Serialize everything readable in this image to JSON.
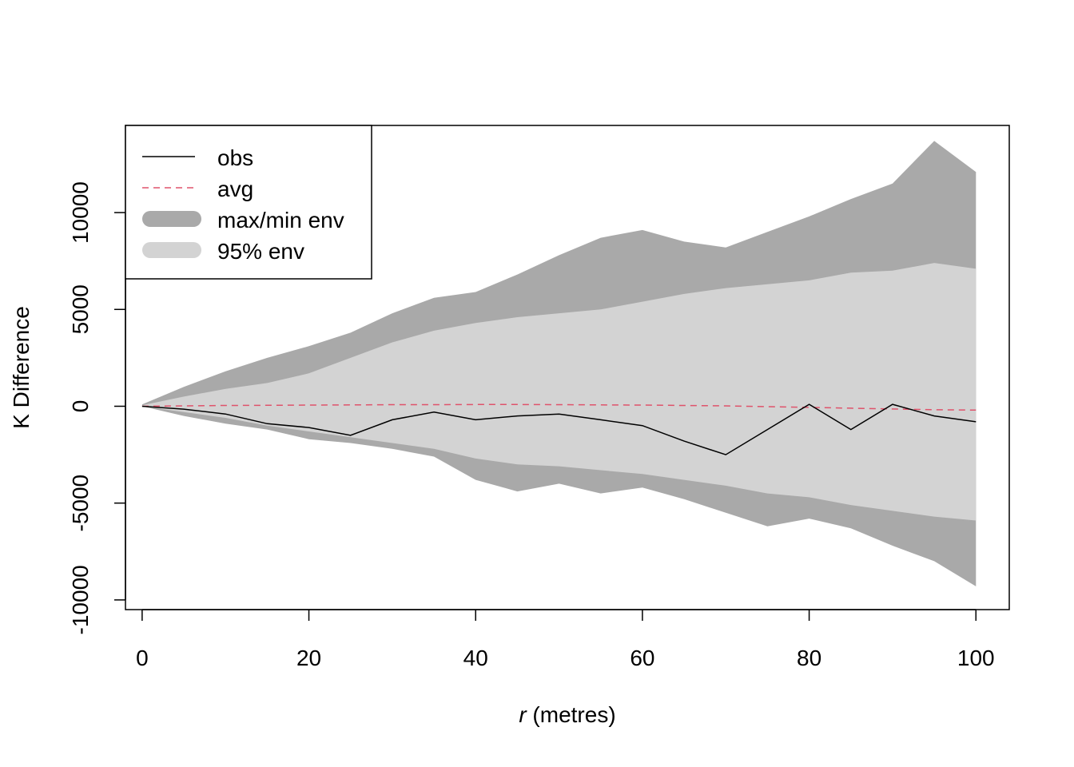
{
  "chart_data": {
    "type": "line",
    "title": "",
    "xlabel_italic": "r",
    "xlabel_rest": " (metres)",
    "ylabel": "K Difference",
    "xlim": [
      -2,
      104
    ],
    "ylim": [
      -10500,
      14500
    ],
    "x_ticks": [
      0,
      20,
      40,
      60,
      80,
      100
    ],
    "x_tick_labels": [
      "0",
      "20",
      "40",
      "60",
      "80",
      "100"
    ],
    "y_ticks": [
      -10000,
      -5000,
      0,
      5000,
      10000
    ],
    "y_tick_labels": [
      "-10000",
      "-5000",
      "0",
      "5000",
      "10000"
    ],
    "grid": false,
    "legend_position": "top-left",
    "legend": [
      {
        "label": "obs",
        "style": "solid-line",
        "color": "#000000"
      },
      {
        "label": "avg",
        "style": "dashed-line",
        "color": "#DF536B"
      },
      {
        "label": "max/min env",
        "style": "band",
        "color": "#A9A9A9"
      },
      {
        "label": "95% env",
        "style": "band",
        "color": "#D3D3D3"
      }
    ],
    "colors": {
      "obs": "#000000",
      "avg": "#DF536B",
      "maxmin": "#A9A9A9",
      "env95": "#D3D3D3"
    },
    "x": [
      0,
      5,
      10,
      15,
      20,
      25,
      30,
      35,
      40,
      45,
      50,
      55,
      60,
      65,
      70,
      75,
      80,
      85,
      90,
      95,
      100
    ],
    "series": [
      {
        "name": "obs",
        "values": [
          0,
          -150,
          -400,
          -900,
          -1100,
          -1500,
          -700,
          -300,
          -700,
          -500,
          -400,
          -700,
          -1000,
          -1800,
          -2500,
          -1200,
          100,
          -1200,
          100,
          -500,
          -800
        ]
      },
      {
        "name": "avg",
        "values": [
          0,
          20,
          40,
          50,
          60,
          70,
          80,
          80,
          90,
          90,
          80,
          70,
          60,
          40,
          20,
          -20,
          -60,
          -100,
          -140,
          -180,
          -200
        ]
      },
      {
        "name": "max env",
        "values": [
          100,
          1000,
          1800,
          2500,
          3100,
          3800,
          4800,
          5600,
          5900,
          6800,
          7800,
          8700,
          9100,
          8500,
          8200,
          9000,
          9800,
          10700,
          11500,
          13700,
          12100
        ]
      },
      {
        "name": "min env",
        "values": [
          0,
          -500,
          -900,
          -1200,
          -1700,
          -1900,
          -2200,
          -2600,
          -3800,
          -4400,
          -4000,
          -4500,
          -4200,
          -4800,
          -5500,
          -6200,
          -5800,
          -6300,
          -7200,
          -8000,
          -9300
        ]
      },
      {
        "name": "95% env upper",
        "values": [
          50,
          500,
          900,
          1200,
          1700,
          2500,
          3300,
          3900,
          4300,
          4600,
          4800,
          5000,
          5400,
          5800,
          6100,
          6300,
          6500,
          6900,
          7000,
          7400,
          7100
        ]
      },
      {
        "name": "95% env lower",
        "values": [
          0,
          -300,
          -600,
          -1000,
          -1300,
          -1600,
          -1900,
          -2200,
          -2700,
          -3000,
          -3100,
          -3300,
          -3500,
          -3800,
          -4100,
          -4500,
          -4700,
          -5100,
          -5400,
          -5700,
          -5900
        ]
      }
    ]
  }
}
